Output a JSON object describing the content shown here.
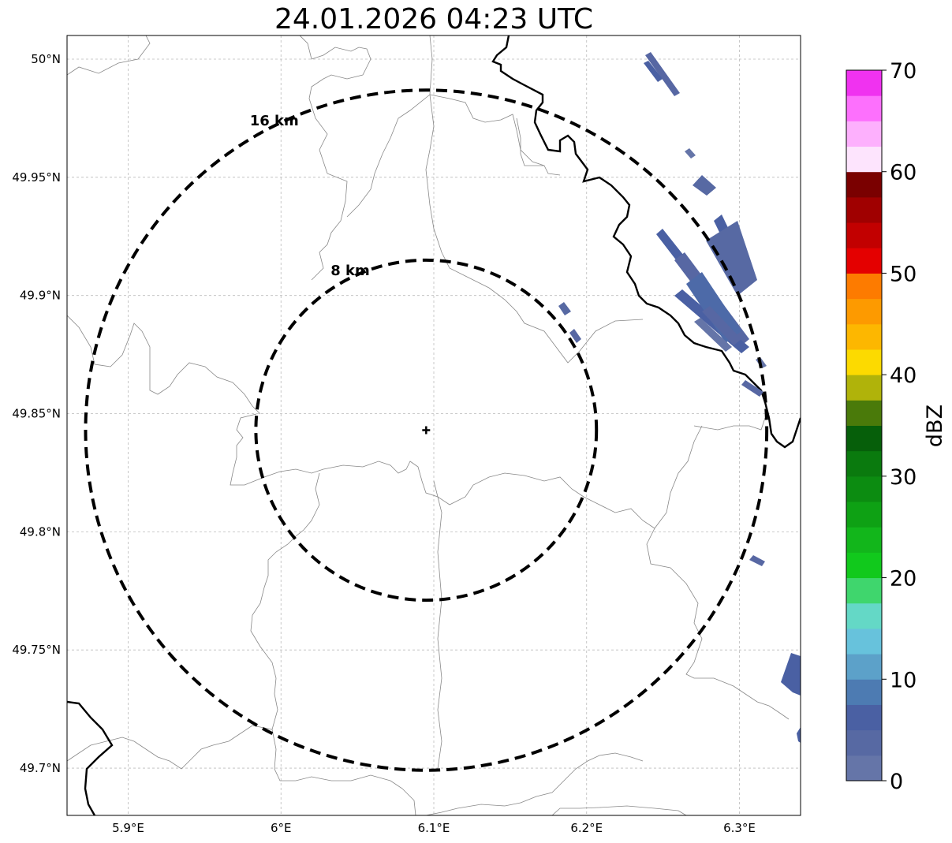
{
  "title": "24.01.2026 04:23 UTC",
  "map": {
    "extent": {
      "lon": [
        5.86,
        6.34
      ],
      "lat": [
        49.68,
        50.01
      ]
    },
    "gridlines": true,
    "radar_site": {
      "lon": 6.095,
      "lat": 49.843
    },
    "lon_ticks": [
      {
        "value": 5.9,
        "label": "5.9°E"
      },
      {
        "value": 6.0,
        "label": "6°E"
      },
      {
        "value": 6.1,
        "label": "6.1°E"
      },
      {
        "value": 6.2,
        "label": "6.2°E"
      },
      {
        "value": 6.3,
        "label": "6.3°E"
      }
    ],
    "lat_ticks": [
      {
        "value": 50.0,
        "label": "50°N"
      },
      {
        "value": 49.95,
        "label": "49.95°N"
      },
      {
        "value": 49.9,
        "label": "49.9°N"
      },
      {
        "value": 49.85,
        "label": "49.85°N"
      },
      {
        "value": 49.8,
        "label": "49.8°N"
      },
      {
        "value": 49.75,
        "label": "49.75°N"
      },
      {
        "value": 49.7,
        "label": "49.7°N"
      }
    ],
    "range_rings": [
      {
        "radius_km": 8,
        "label": "8 km"
      },
      {
        "radius_km": 16,
        "label": "16 km"
      }
    ],
    "echoes_dbz_range": [
      0,
      10
    ]
  },
  "colorbar": {
    "label": "dBZ",
    "ticks": [
      "0",
      "10",
      "20",
      "30",
      "40",
      "50",
      "60",
      "70"
    ],
    "colors": [
      "#6575a8",
      "#5769a3",
      "#4a60a3",
      "#4d7bb2",
      "#5ca1c9",
      "#67c2dc",
      "#64d8c6",
      "#3fd66d",
      "#11c91c",
      "#12b61b",
      "#0ea114",
      "#0c8c11",
      "#0a7a0e",
      "#065f0a",
      "#4a7a0a",
      "#b0b30a",
      "#fcda00",
      "#fdb700",
      "#fd9a00",
      "#fd7b00",
      "#e40000",
      "#c20000",
      "#a00000",
      "#7a0000",
      "#fde4fd",
      "#fdb0fd",
      "#fd70fd",
      "#f032f0"
    ]
  }
}
